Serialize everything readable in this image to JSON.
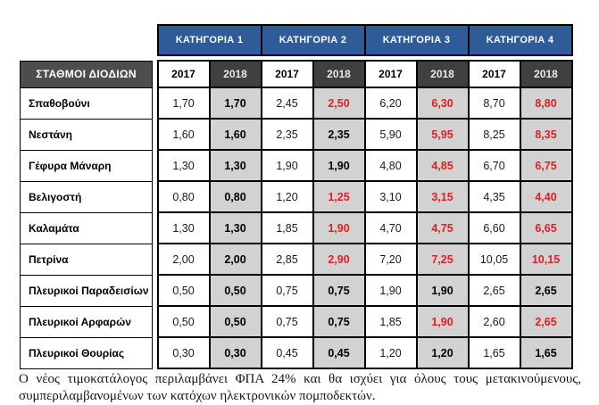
{
  "table": {
    "station_header": "ΣΤΑΘΜΟΙ ΔΙΟΔΙΩΝ",
    "categories": [
      "ΚΑΤΗΓΟΡΙΑ 1",
      "ΚΑΤΗΓΟΡΙΑ 2",
      "ΚΑΤΗΓΟΡΙΑ 3",
      "ΚΑΤΗΓΟΡΙΑ 4"
    ],
    "years": [
      "2017",
      "2018"
    ],
    "rows": [
      {
        "station": "Σπαθοβούνι",
        "values": [
          "1,70",
          "1,70",
          "2,45",
          "2,50",
          "6,20",
          "6,30",
          "8,70",
          "8,80"
        ],
        "red": [
          false,
          false,
          false,
          true,
          false,
          true,
          false,
          true
        ]
      },
      {
        "station": "Νεστάνη",
        "values": [
          "1,60",
          "1,60",
          "2,35",
          "2,35",
          "5,90",
          "5,95",
          "8,25",
          "8,35"
        ],
        "red": [
          false,
          false,
          false,
          false,
          false,
          true,
          false,
          true
        ]
      },
      {
        "station": "Γέφυρα Μάναρη",
        "values": [
          "1,30",
          "1,30",
          "1,90",
          "1,90",
          "4,80",
          "4,85",
          "6,70",
          "6,75"
        ],
        "red": [
          false,
          false,
          false,
          false,
          false,
          true,
          false,
          true
        ]
      },
      {
        "station": "Βελιγοστή",
        "values": [
          "0,80",
          "0,80",
          "1,20",
          "1,25",
          "3,10",
          "3,15",
          "4,35",
          "4,40"
        ],
        "red": [
          false,
          false,
          false,
          true,
          false,
          true,
          false,
          true
        ]
      },
      {
        "station": "Καλαμάτα",
        "values": [
          "1,30",
          "1,30",
          "1,85",
          "1,90",
          "4,70",
          "4,75",
          "6,60",
          "6,65"
        ],
        "red": [
          false,
          false,
          false,
          true,
          false,
          true,
          false,
          true
        ]
      },
      {
        "station": "Πετρίνα",
        "values": [
          "2,00",
          "2,00",
          "2,85",
          "2,90",
          "7,20",
          "7,25",
          "10,05",
          "10,15"
        ],
        "red": [
          false,
          false,
          false,
          true,
          false,
          true,
          false,
          true
        ]
      },
      {
        "station": "Πλευρικοί Παραδεισίων",
        "values": [
          "0,50",
          "0,50",
          "0,75",
          "0,75",
          "1,90",
          "1,90",
          "2,65",
          "2,65"
        ],
        "red": [
          false,
          false,
          false,
          false,
          false,
          false,
          false,
          false
        ]
      },
      {
        "station": "Πλευρικοί Αρφαρών",
        "values": [
          "0,50",
          "0,50",
          "0,75",
          "0,75",
          "1,85",
          "1,90",
          "2,60",
          "2,65"
        ],
        "red": [
          false,
          false,
          false,
          false,
          false,
          true,
          false,
          true
        ]
      },
      {
        "station": "Πλευρικοί Θουρίας",
        "values": [
          "0,30",
          "0,30",
          "0,45",
          "0,45",
          "1,20",
          "1,20",
          "1,65",
          "1,65"
        ],
        "red": [
          false,
          false,
          false,
          false,
          false,
          false,
          false,
          false
        ]
      }
    ]
  },
  "footer": {
    "text": "Ο νέος τιμοκατάλογος περιλαμβάνει ΦΠΑ 24% και θα ισχύει για όλους τους μετακινούμενους, συμπεριλαμβανομένων των κατόχων ηλεκτρονικών πομποδεκτών."
  },
  "colors": {
    "category_blue": "#2F5B99",
    "header_dark": "#404040",
    "station_header_dark": "#4D4D4D",
    "cell_gray_2018": "#D2D2D2",
    "changed_red": "#E02020"
  }
}
